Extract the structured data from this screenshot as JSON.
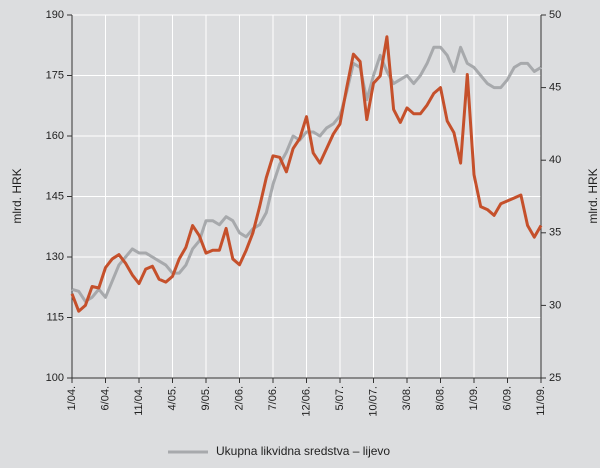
{
  "chart_data": {
    "type": "line",
    "ylabel": "mlrd. HRK",
    "y2label": "mlrd. HRK",
    "categories": [
      "1/04.",
      null,
      null,
      null,
      null,
      "6/04.",
      null,
      null,
      null,
      null,
      "11/04.",
      null,
      null,
      null,
      null,
      "4/05.",
      null,
      null,
      null,
      null,
      "9/05.",
      null,
      null,
      null,
      null,
      "2/06.",
      null,
      null,
      null,
      null,
      "7/06.",
      null,
      null,
      null,
      null,
      "12/06.",
      null,
      null,
      null,
      null,
      "5/07.",
      null,
      null,
      null,
      null,
      "10/07.",
      null,
      null,
      null,
      null,
      "3/08.",
      null,
      null,
      null,
      null,
      "8/08.",
      null,
      null,
      null,
      null,
      "1/09.",
      null,
      null,
      null,
      null,
      "6/09.",
      null,
      null,
      null,
      null,
      "11/09."
    ],
    "series": [
      {
        "name": "Ukupna likvidna sredstva – lijevo",
        "color": "#a7a9ac",
        "values": [
          122,
          121.5,
          119,
          120,
          122,
          120,
          124,
          128,
          130,
          132,
          131,
          131,
          130,
          129,
          128,
          126,
          126,
          128,
          132,
          134,
          139,
          139,
          138,
          140,
          139,
          136,
          135,
          137,
          138,
          141,
          148,
          153,
          156,
          160,
          159,
          161,
          161,
          160,
          162,
          163,
          165,
          171,
          178,
          177,
          169,
          175,
          180,
          176,
          173,
          174,
          175,
          173,
          175,
          178,
          182,
          182,
          180,
          176,
          182,
          178,
          177,
          175,
          173,
          172,
          172,
          174,
          177,
          178,
          178,
          176,
          177
        ]
      },
      {
        "color": "#c5502b",
        "axis": "y2",
        "values": [
          30.8,
          29.6,
          30,
          31.3,
          31.2,
          32.6,
          33.2,
          33.5,
          32.9,
          32.1,
          31.5,
          32.5,
          32.7,
          31.8,
          31.6,
          32,
          33.2,
          34,
          35.5,
          34.8,
          33.6,
          33.8,
          33.8,
          35.3,
          33.2,
          32.8,
          33.8,
          35,
          36.8,
          38.8,
          40.3,
          40.2,
          39.2,
          40.8,
          41.5,
          43,
          40.5,
          39.8,
          40.8,
          41.8,
          42.5,
          45,
          47.3,
          46.8,
          42.8,
          45.3,
          45.8,
          48.5,
          43.5,
          42.6,
          43.6,
          43.2,
          43.2,
          43.8,
          44.6,
          45,
          42.7,
          41.9,
          39.8,
          45.9,
          39,
          36.8,
          36.6,
          36.2,
          37,
          37.2,
          37.4,
          37.6,
          35.5,
          34.7,
          35.5
        ]
      }
    ],
    "ylim": [
      100,
      190
    ],
    "yticks": [
      100,
      115,
      130,
      145,
      160,
      175,
      190
    ],
    "y2lim": [
      25,
      50
    ],
    "y2ticks": [
      25,
      30,
      35,
      40,
      45,
      50
    ],
    "grid": true
  }
}
